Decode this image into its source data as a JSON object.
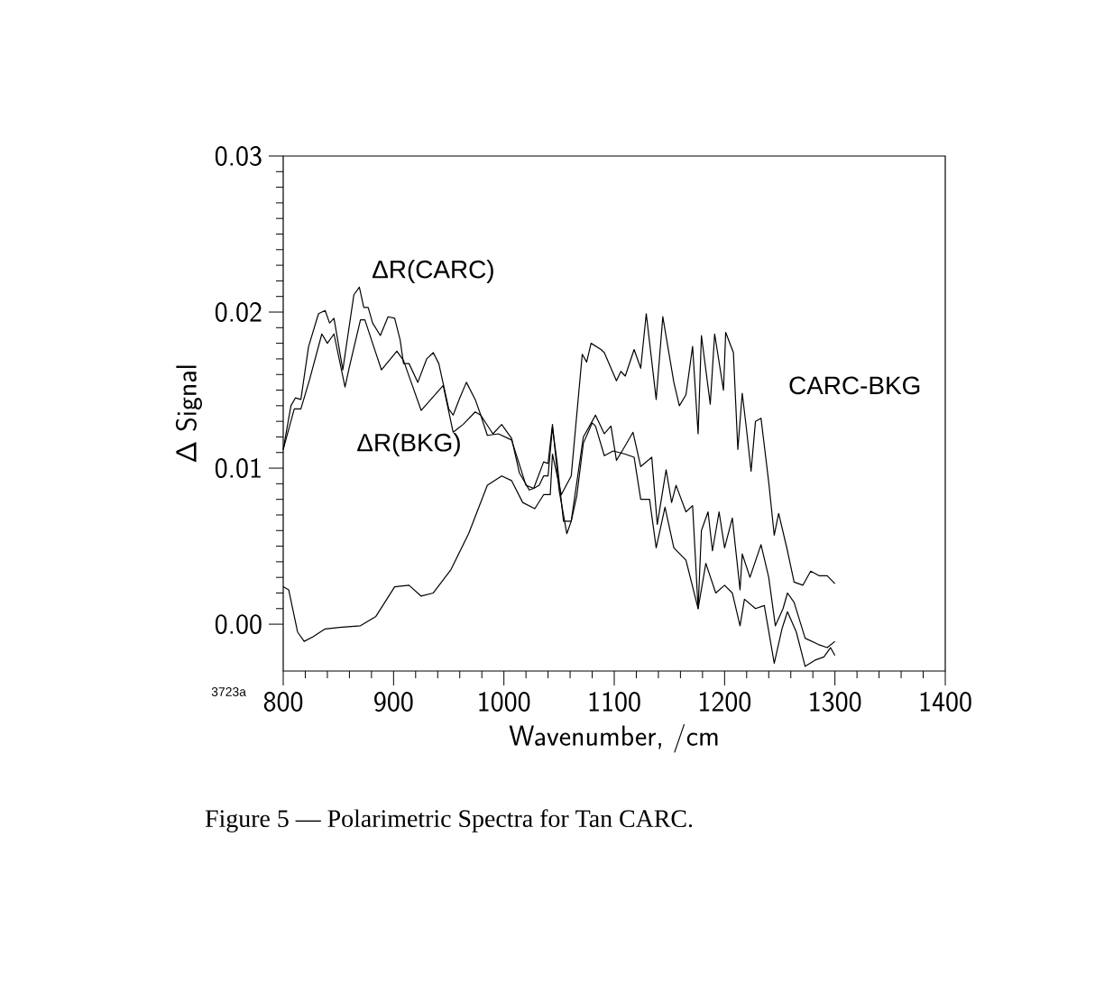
{
  "chart_data": {
    "type": "line",
    "xlabel": "Wavenumber, /cm",
    "ylabel": "Δ Signal",
    "xlim": [
      800,
      1400
    ],
    "xticks": [
      800,
      900,
      1000,
      1100,
      1200,
      1300,
      1400
    ],
    "ylim": [
      -0.003,
      0.03
    ],
    "yticks": [
      {
        "value": 0,
        "label": "0.00"
      },
      0.01,
      0.02,
      0.03
    ],
    "annotations": [
      "3723a",
      "Figure 5 — Polarimetric Spectra for Tan CARC."
    ],
    "series": [
      {
        "name": "ΔR(CARC)",
        "color": "#000000",
        "x": [
          800,
          807,
          811,
          816,
          823,
          832,
          838,
          842,
          846,
          854,
          864,
          869,
          873,
          877,
          881,
          888,
          895,
          901,
          906,
          909,
          914,
          922,
          930,
          936,
          941,
          950,
          954,
          960,
          966,
          974,
          979,
          990,
          998,
          1007,
          1014,
          1023,
          1027,
          1036,
          1040,
          1044,
          1050,
          1057,
          1061,
          1072,
          1080,
          1083,
          1091,
          1097,
          1102,
          1108,
          1117,
          1124,
          1134,
          1139,
          1147,
          1152,
          1156,
          1165,
          1171,
          1176,
          1179,
          1185,
          1189,
          1195,
          1200,
          1207,
          1214,
          1216,
          1223,
          1233,
          1240,
          1246,
          1253,
          1257,
          1263,
          1273,
          1285,
          1293,
          1300
        ],
        "values": [
          0.0112,
          0.014,
          0.0145,
          0.0144,
          0.0178,
          0.0199,
          0.0201,
          0.0193,
          0.0196,
          0.0163,
          0.0211,
          0.0216,
          0.0203,
          0.0203,
          0.0193,
          0.0185,
          0.0197,
          0.0196,
          0.0182,
          0.0167,
          0.0167,
          0.0155,
          0.017,
          0.0174,
          0.0167,
          0.0138,
          0.0134,
          0.0145,
          0.0155,
          0.0144,
          0.0134,
          0.0122,
          0.0128,
          0.0119,
          0.0097,
          0.0086,
          0.0087,
          0.0104,
          0.0103,
          0.0128,
          0.0086,
          0.0058,
          0.0066,
          0.012,
          0.013,
          0.0134,
          0.0122,
          0.0127,
          0.0105,
          0.0112,
          0.0123,
          0.0101,
          0.0107,
          0.0064,
          0.0099,
          0.0078,
          0.0089,
          0.0072,
          0.0076,
          0.001,
          0.006,
          0.0072,
          0.0047,
          0.0072,
          0.0049,
          0.0068,
          0.0022,
          0.0045,
          0.003,
          0.0051,
          0.003,
          -0.0001,
          0.001,
          0.002,
          0.0014,
          -0.0009,
          -0.0013,
          -0.0015,
          -0.0011
        ]
      },
      {
        "name": "ΔR(BKG)",
        "color": "#000000",
        "x": [
          800,
          810,
          816,
          824,
          835,
          840,
          846,
          856,
          860,
          870,
          874,
          881,
          889,
          903,
          909,
          917,
          925,
          930,
          945,
          954,
          963,
          974,
          979,
          985,
          995,
          1007,
          1020,
          1027,
          1032,
          1036,
          1040,
          1044,
          1048,
          1054,
          1061,
          1066,
          1072,
          1077,
          1080,
          1083,
          1091,
          1099,
          1110,
          1118,
          1124,
          1132,
          1138,
          1146,
          1154,
          1165,
          1176,
          1183,
          1192,
          1200,
          1207,
          1214,
          1218,
          1228,
          1236,
          1245,
          1252,
          1257,
          1265,
          1273,
          1282,
          1290,
          1296,
          1300
        ],
        "values": [
          0.0112,
          0.0138,
          0.0138,
          0.0157,
          0.0186,
          0.018,
          0.0186,
          0.0152,
          0.0165,
          0.0195,
          0.0195,
          0.018,
          0.0163,
          0.0175,
          0.0169,
          0.0153,
          0.0137,
          0.0141,
          0.0153,
          0.0123,
          0.0128,
          0.0136,
          0.0134,
          0.0121,
          0.0122,
          0.0118,
          0.0089,
          0.0087,
          0.0089,
          0.0095,
          0.0095,
          0.0126,
          0.0105,
          0.0066,
          0.0066,
          0.0082,
          0.0116,
          0.0124,
          0.0129,
          0.0127,
          0.0108,
          0.0111,
          0.0109,
          0.0107,
          0.008,
          0.008,
          0.0049,
          0.0075,
          0.0049,
          0.0041,
          0.001,
          0.0039,
          0.002,
          0.0025,
          0.002,
          -0.0001,
          0.0016,
          0.001,
          0.0012,
          -0.0025,
          -0.0003,
          0.0008,
          -0.0005,
          -0.0027,
          -0.0023,
          -0.0021,
          -0.0015,
          -0.002
        ]
      },
      {
        "name": "CARC-BKG",
        "color": "#000000",
        "x": [
          800,
          805,
          813,
          819,
          827,
          838,
          851,
          870,
          884,
          901,
          914,
          925,
          936,
          952,
          968,
          985,
          998,
          1007,
          1017,
          1028,
          1036,
          1042,
          1044,
          1052,
          1061,
          1071,
          1075,
          1079,
          1088,
          1091,
          1102,
          1106,
          1110,
          1118,
          1124,
          1129,
          1138,
          1144,
          1154,
          1159,
          1165,
          1171,
          1176,
          1179,
          1187,
          1191,
          1199,
          1201,
          1208,
          1212,
          1216,
          1220,
          1224,
          1228,
          1233,
          1240,
          1245,
          1249,
          1257,
          1263,
          1271,
          1278,
          1286,
          1293,
          1300
        ],
        "values": [
          0.0024,
          0.0022,
          -0.0005,
          -0.0011,
          -0.0008,
          -0.0003,
          -0.0002,
          -0.0001,
          0.0005,
          0.0024,
          0.0025,
          0.0018,
          0.002,
          0.0035,
          0.0058,
          0.0089,
          0.0095,
          0.0092,
          0.0078,
          0.0074,
          0.0083,
          0.0083,
          0.0109,
          0.0083,
          0.0095,
          0.0173,
          0.0168,
          0.018,
          0.0176,
          0.0174,
          0.0156,
          0.0162,
          0.0159,
          0.0176,
          0.0164,
          0.0199,
          0.0144,
          0.0197,
          0.0155,
          0.014,
          0.0147,
          0.0178,
          0.0122,
          0.0185,
          0.0141,
          0.0186,
          0.015,
          0.0187,
          0.0174,
          0.0112,
          0.0148,
          0.0124,
          0.0098,
          0.013,
          0.0132,
          0.0091,
          0.0057,
          0.0071,
          0.0047,
          0.0027,
          0.0025,
          0.0034,
          0.0031,
          0.0031,
          0.0026
        ]
      }
    ]
  }
}
